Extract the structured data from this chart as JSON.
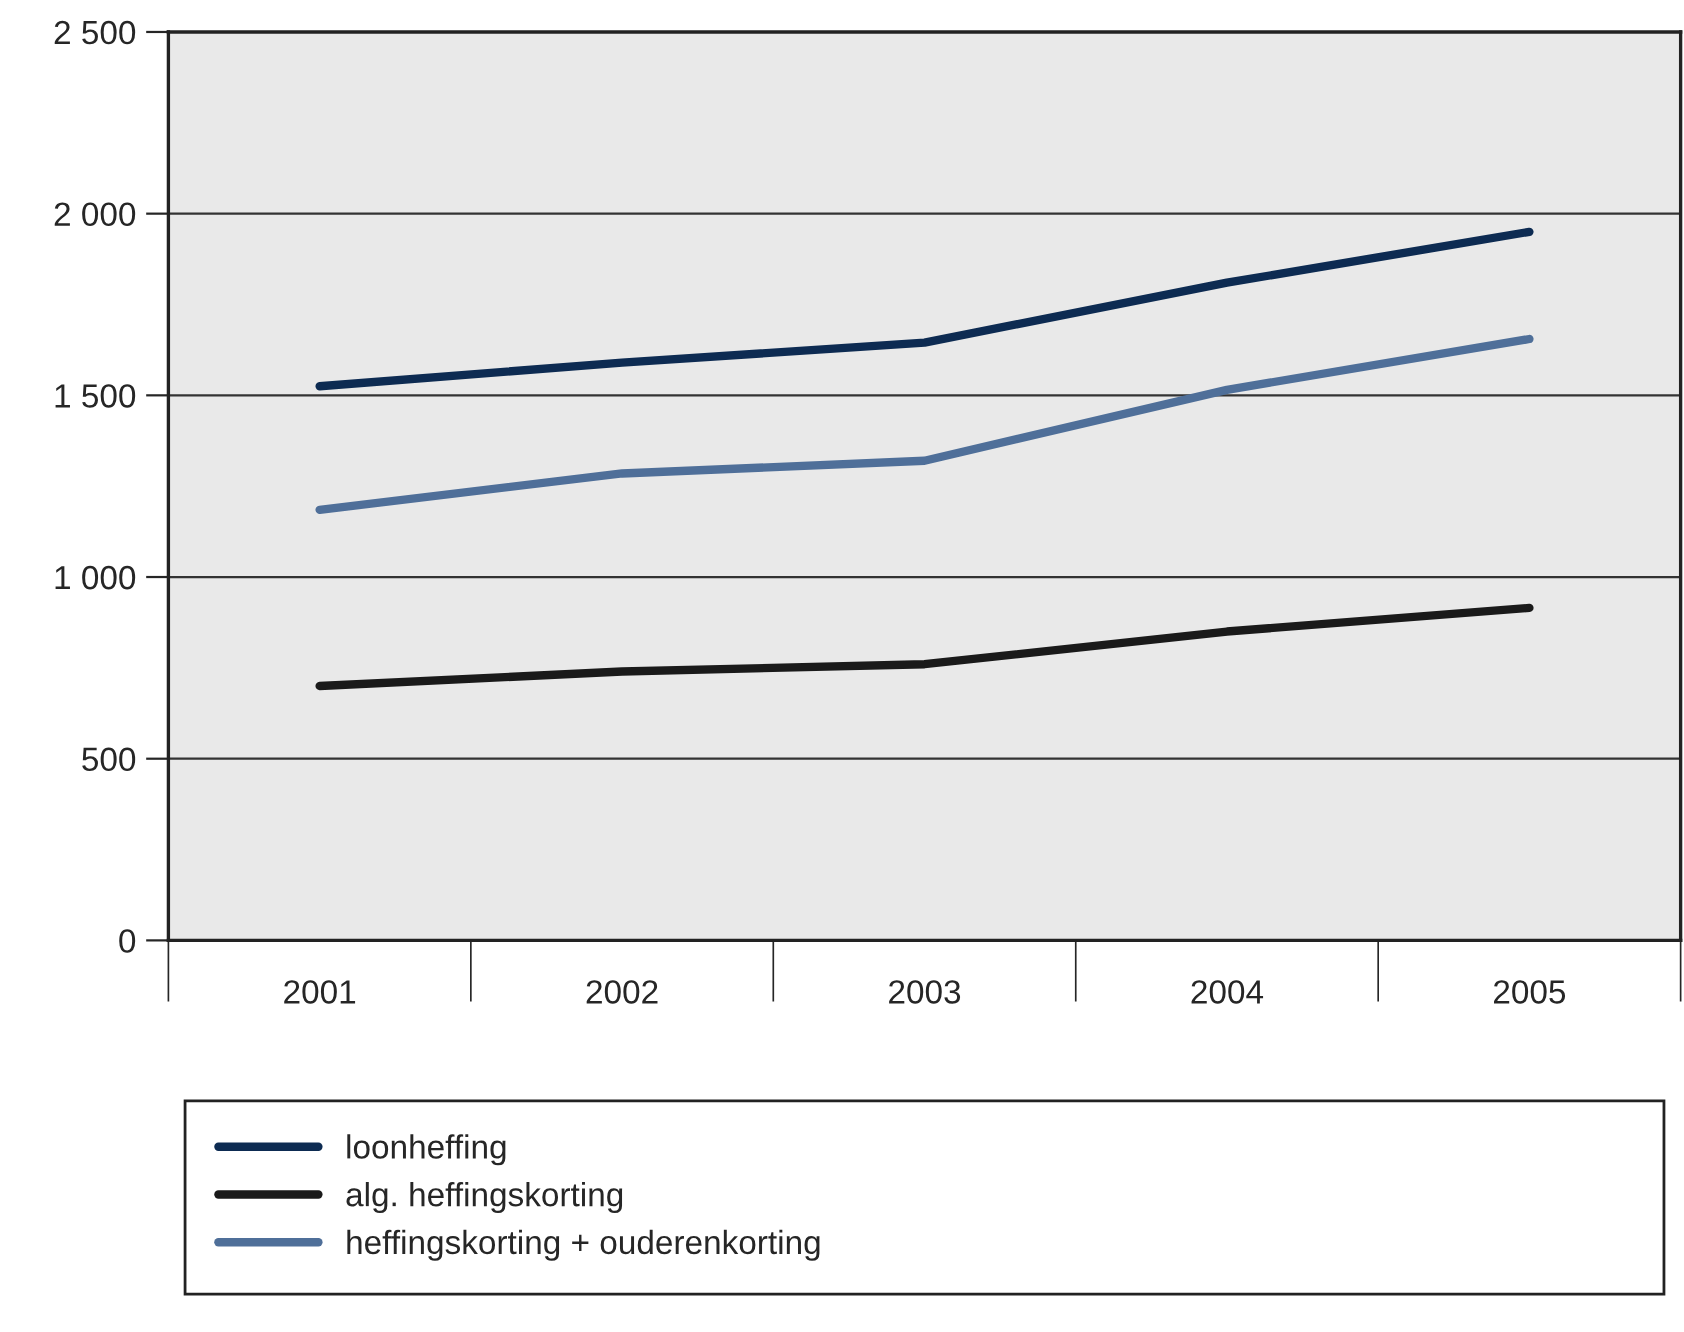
{
  "chart_data": {
    "type": "line",
    "categories": [
      "2001",
      "2002",
      "2003",
      "2004",
      "2005"
    ],
    "series": [
      {
        "name": "loonheffing",
        "color": "#0d2b52",
        "values": [
          1525,
          1590,
          1645,
          1810,
          1950
        ]
      },
      {
        "name": "alg. heffingskorting",
        "color": "#1a1a1a",
        "values": [
          700,
          740,
          760,
          850,
          915
        ]
      },
      {
        "name": "heffingskorting + ouderenkorting",
        "color": "#4f6f99",
        "values": [
          1185,
          1285,
          1320,
          1515,
          1655
        ]
      }
    ],
    "ylim": [
      0,
      2500
    ],
    "yticks": [
      0,
      500,
      {
        "value": 1000,
        "label": "1 000"
      },
      {
        "value": 1500,
        "label": "1 500"
      },
      {
        "value": 2000,
        "label": "2 000"
      },
      {
        "value": 2500,
        "label": "2 500"
      }
    ],
    "grid": "y",
    "legend": "bottom",
    "marker": "none",
    "line_style": "solid"
  }
}
